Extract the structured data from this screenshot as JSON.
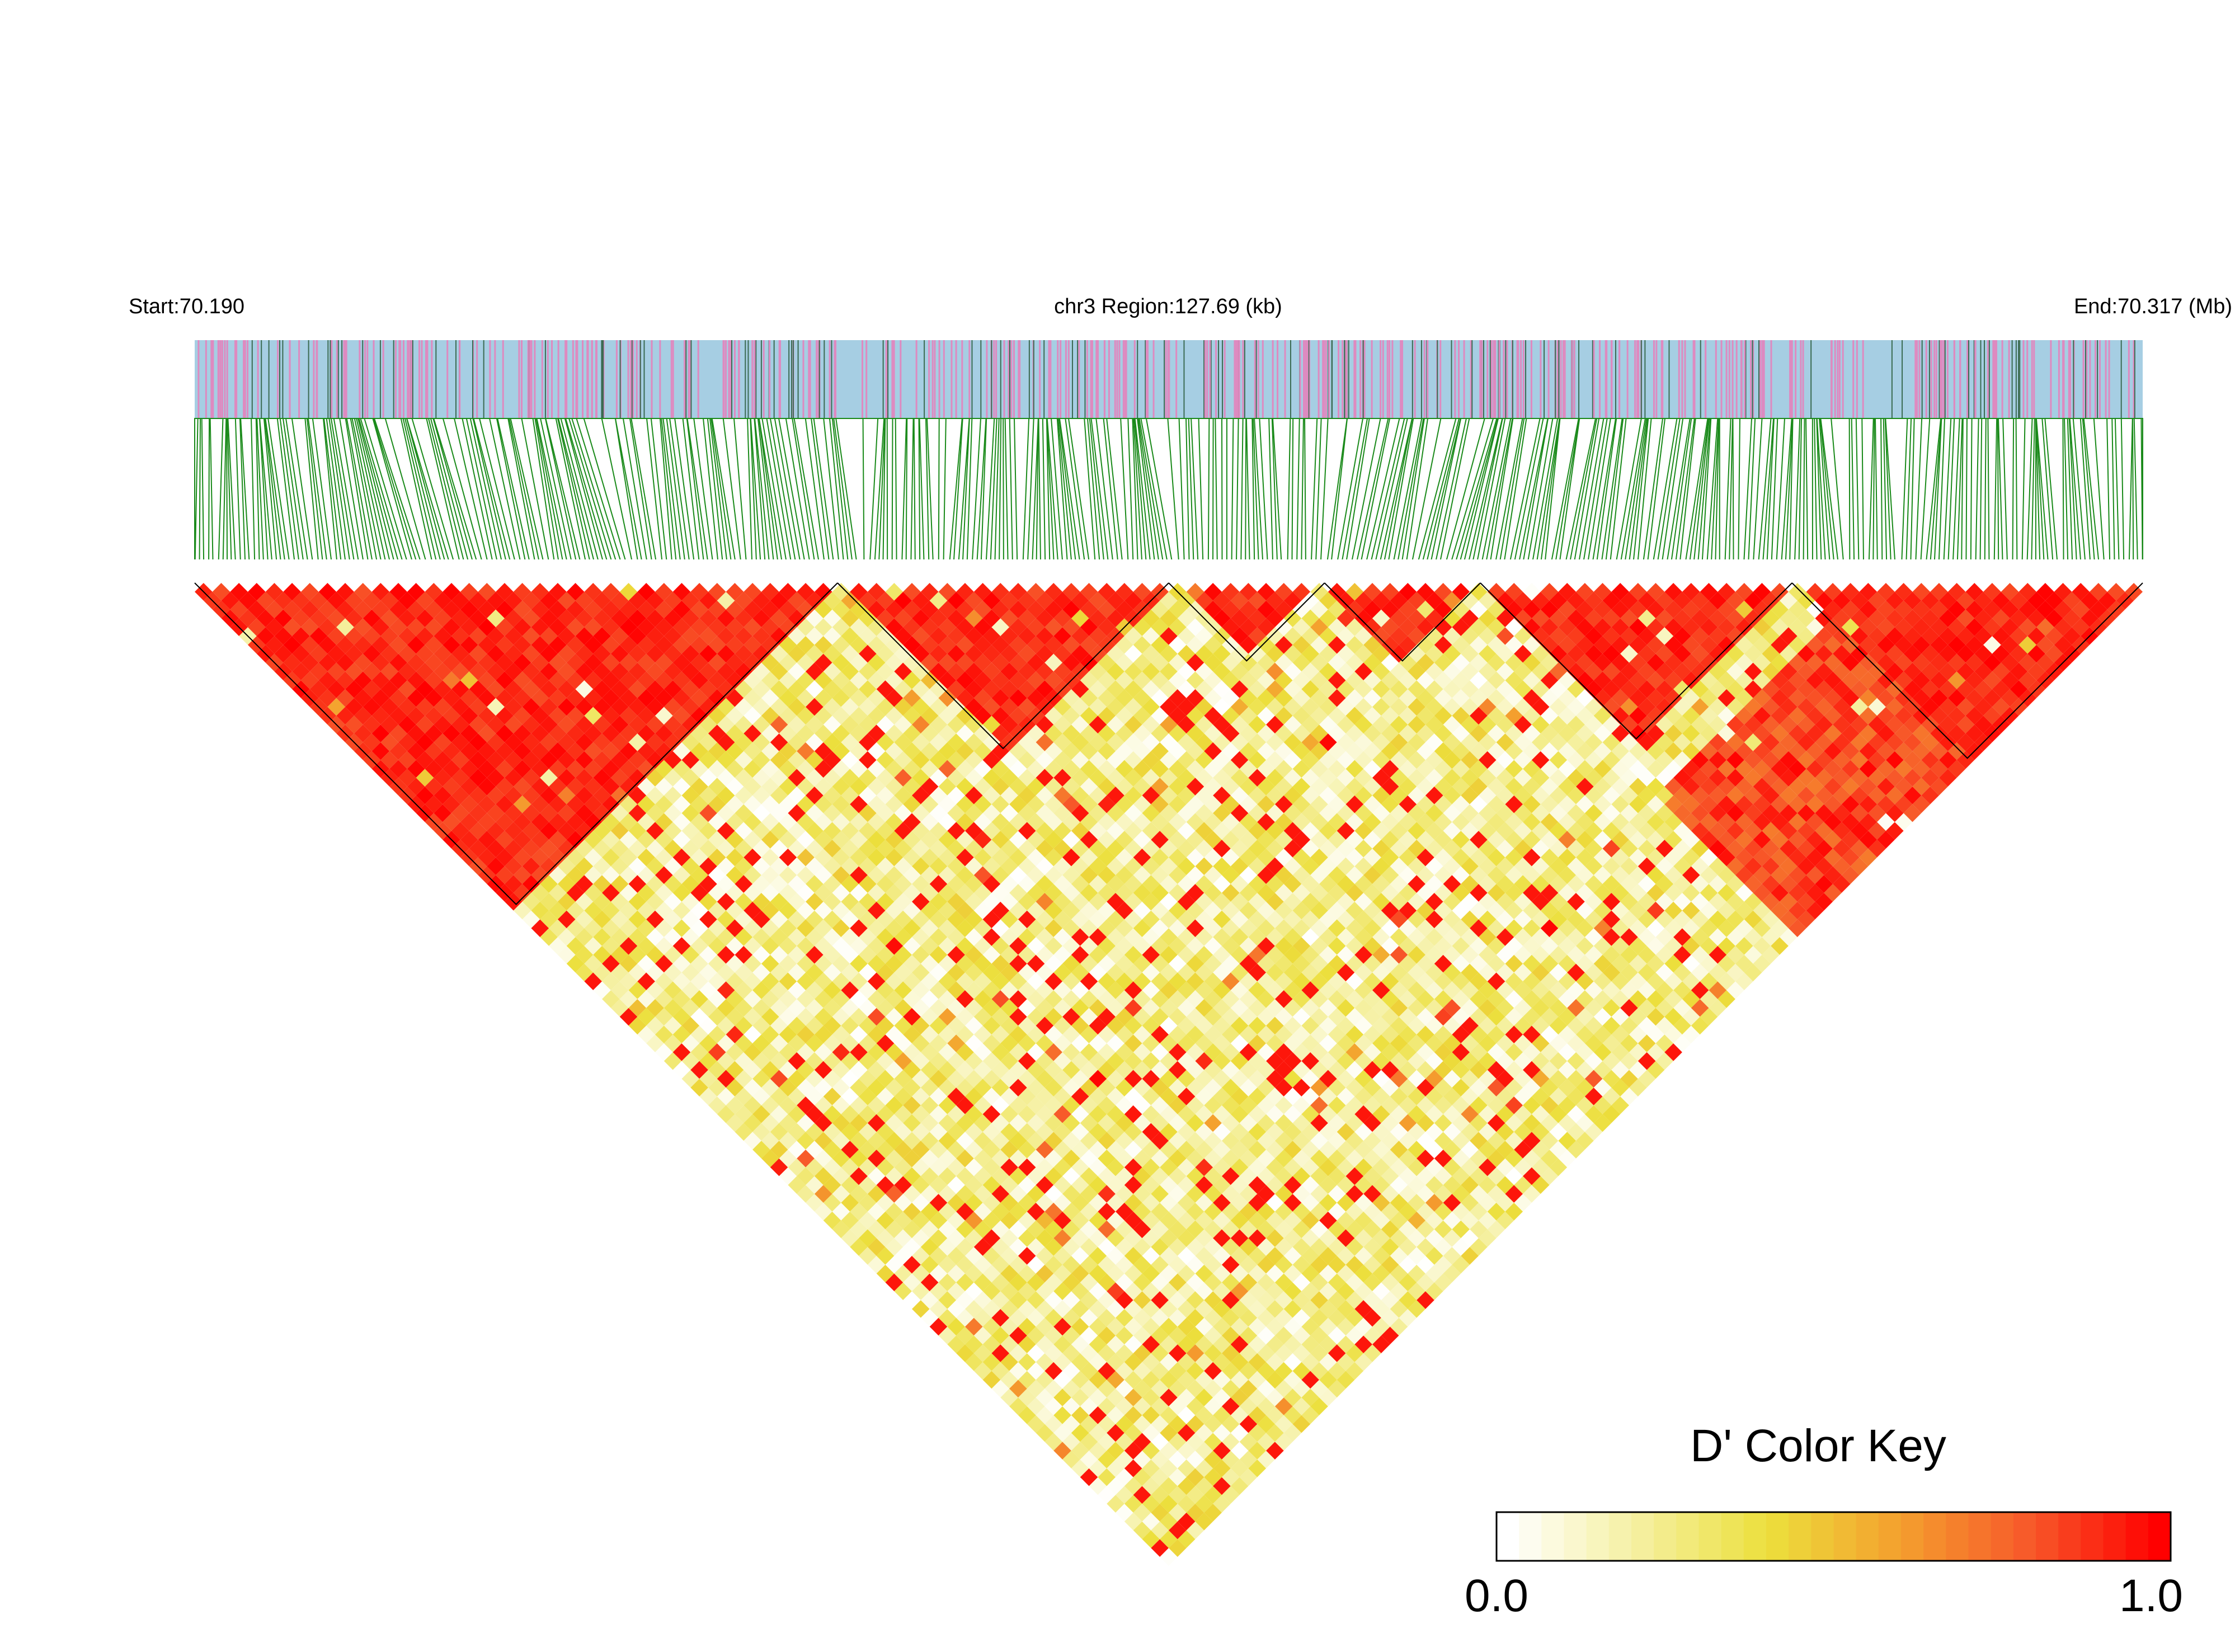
{
  "chart_data": {
    "type": "heatmap",
    "header": {
      "start_label": "Start:70.190",
      "region_label": "chr3 Region:127.69 (kb)",
      "end_label": "End:70.317 (Mb)"
    },
    "region": {
      "chromosome": "chr3",
      "start_mb": 70.19,
      "end_mb": 70.317,
      "length_kb": 127.69
    },
    "metric": "D'",
    "color_key": {
      "title": "D' Color Key",
      "min_label": "0.0",
      "max_label": "1.0",
      "range": [
        0,
        1
      ],
      "stops": [
        "#ffffff",
        "#f5f0a0",
        "#ecdf3c",
        "#f4a02e",
        "#f7592a",
        "#ff0000"
      ]
    },
    "snp_track_colors": {
      "background": "#a6cee3",
      "minor": "#de8ac0",
      "major": "#3b6b52"
    },
    "connector_color": "#1a8a1a",
    "high_ld_blocks_fraction": [
      [
        0.0,
        0.33
      ],
      [
        0.33,
        0.5
      ],
      [
        0.5,
        0.58
      ],
      [
        0.58,
        0.66
      ],
      [
        0.66,
        0.82
      ],
      [
        0.82,
        1.0
      ]
    ],
    "high_ld_upper_anchor": [
      0.86,
      1.0
    ],
    "notes": "Triangle heatmap of pairwise D' between SNPs along the region; red = high LD blocks, pale yellow = low LD."
  }
}
